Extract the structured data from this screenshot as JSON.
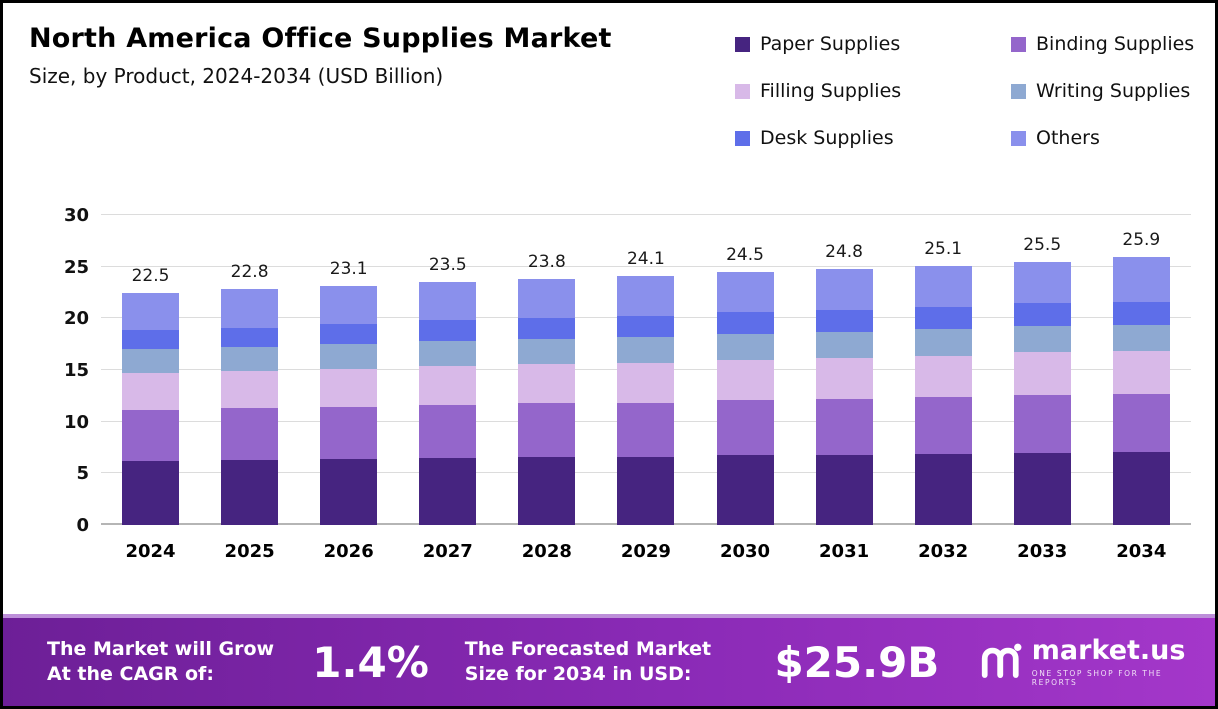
{
  "header": {
    "title": "North America Office Supplies Market",
    "subtitle": "Size, by Product, 2024-2034 (USD Billion)"
  },
  "legend": [
    {
      "label": "Paper Supplies",
      "color": "#462480"
    },
    {
      "label": "Binding Supplies",
      "color": "#9466cb"
    },
    {
      "label": "Filling Supplies",
      "color": "#d8b9e8"
    },
    {
      "label": "Writing Supplies",
      "color": "#8ea9d2"
    },
    {
      "label": "Desk Supplies",
      "color": "#5e6ee9"
    },
    {
      "label": "Others",
      "color": "#8a90ec"
    }
  ],
  "chart_data": {
    "type": "bar",
    "stacked": true,
    "title": "North America Office Supplies Market Size, by Product, 2024-2034 (USD Billion)",
    "xlabel": "",
    "ylabel": "USD Billion",
    "ylim": [
      0,
      30
    ],
    "yticks": [
      0,
      5,
      10,
      15,
      20,
      25,
      30
    ],
    "grid": true,
    "legend_position": "top-right",
    "categories": [
      "2024",
      "2025",
      "2026",
      "2027",
      "2028",
      "2029",
      "2030",
      "2031",
      "2032",
      "2033",
      "2034"
    ],
    "totals": [
      22.5,
      22.8,
      23.1,
      23.5,
      23.8,
      24.1,
      24.5,
      24.8,
      25.1,
      25.5,
      25.9
    ],
    "series": [
      {
        "name": "Paper Supplies",
        "color": "#462480",
        "values": [
          6.2,
          6.3,
          6.4,
          6.5,
          6.6,
          6.6,
          6.8,
          6.8,
          6.9,
          7.0,
          7.1
        ]
      },
      {
        "name": "Binding Supplies",
        "color": "#9466cb",
        "values": [
          4.9,
          5.0,
          5.0,
          5.1,
          5.2,
          5.2,
          5.3,
          5.4,
          5.5,
          5.6,
          5.6
        ]
      },
      {
        "name": "Filling Supplies",
        "color": "#d8b9e8",
        "values": [
          3.6,
          3.6,
          3.7,
          3.8,
          3.8,
          3.9,
          3.9,
          4.0,
          4.0,
          4.1,
          4.1
        ]
      },
      {
        "name": "Writing Supplies",
        "color": "#8ea9d2",
        "values": [
          2.3,
          2.3,
          2.4,
          2.4,
          2.4,
          2.5,
          2.5,
          2.5,
          2.6,
          2.6,
          2.6
        ]
      },
      {
        "name": "Desk Supplies",
        "color": "#5e6ee9",
        "values": [
          1.9,
          1.9,
          2.0,
          2.0,
          2.0,
          2.0,
          2.1,
          2.1,
          2.1,
          2.2,
          2.2
        ]
      },
      {
        "name": "Others",
        "color": "#8a90ec",
        "values": [
          3.6,
          3.7,
          3.6,
          3.7,
          3.8,
          3.9,
          3.9,
          4.0,
          4.0,
          4.0,
          4.3
        ]
      }
    ]
  },
  "footer": {
    "cagr_label": "The Market will Grow At the CAGR of:",
    "cagr_value": "1.4%",
    "forecast_label": "The Forecasted Market Size for 2034 in USD:",
    "forecast_value": "$25.9B",
    "brand_name": "market.us",
    "brand_tagline": "ONE STOP SHOP FOR THE REPORTS"
  }
}
